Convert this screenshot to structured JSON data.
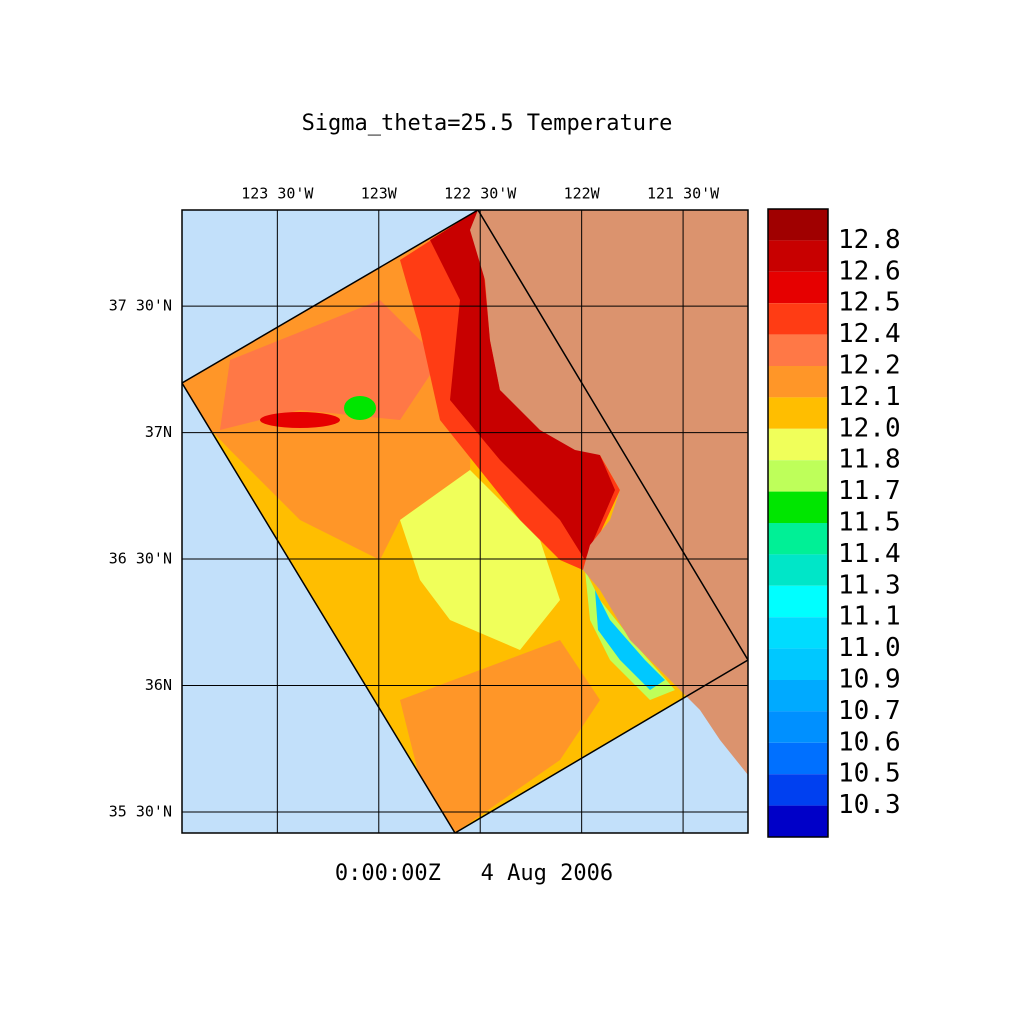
{
  "title": "Sigma_theta=25.5 Temperature",
  "time": "0:00:00Z   4 Aug 2006",
  "map": {
    "lon_range": [
      -123.97,
      -121.18
    ],
    "lat_range": [
      35.417,
      37.88
    ],
    "lon_ticks": [
      {
        "value": -123.5,
        "label": "123 30'W"
      },
      {
        "value": -123,
        "label": "123W"
      },
      {
        "value": -122.5,
        "label": "122 30'W"
      },
      {
        "value": -122,
        "label": "122W"
      },
      {
        "value": -121.5,
        "label": "121 30'W"
      }
    ],
    "lat_ticks": [
      {
        "value": 37.5,
        "label": "37 30'N"
      },
      {
        "value": 37,
        "label": "37N"
      },
      {
        "value": 36.5,
        "label": "36 30'N"
      },
      {
        "value": 36,
        "label": "36N"
      },
      {
        "value": 35.5,
        "label": "35 30'N"
      }
    ],
    "ocean_color": "#c2e0fa",
    "land_color": "#db936e"
  },
  "colorbar": {
    "colors": [
      "#a00000",
      "#c80000",
      "#e60000",
      "#ff3c14",
      "#ff7846",
      "#ff9628",
      "#ffbe00",
      "#f0ff5a",
      "#beff5a",
      "#00e600",
      "#00f096",
      "#00e6c8",
      "#00ffff",
      "#00dcff",
      "#00c8ff",
      "#00aaff",
      "#0090ff",
      "#0070ff",
      "#0040f0",
      "#0000c8"
    ],
    "levels": [
      12.8,
      12.6,
      12.5,
      12.4,
      12.2,
      12.1,
      {
        "value": 12,
        "label": "12.0"
      },
      11.8,
      11.7,
      11.5,
      11.4,
      11.3,
      11.1,
      {
        "value": 11,
        "label": "11.0"
      },
      10.9,
      10.7,
      10.6,
      10.5,
      10.3
    ]
  }
}
